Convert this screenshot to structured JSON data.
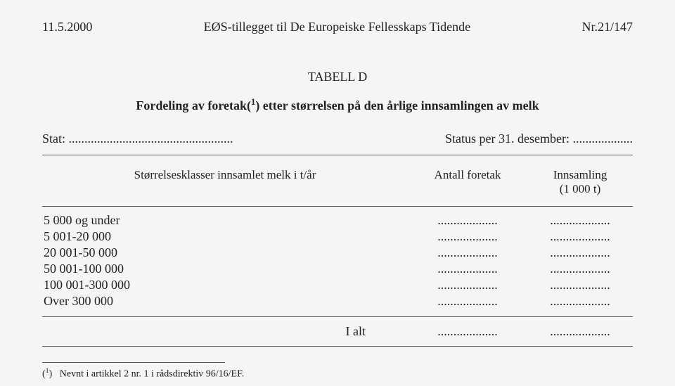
{
  "header": {
    "left": "11.5.2000",
    "center": "EØS-tillegget til De Europeiske Fellesskaps Tidende",
    "right": "Nr.21/147"
  },
  "title": "TABELL D",
  "subtitle_prefix": "Fordeling av foretak(",
  "subtitle_sup": "1",
  "subtitle_suffix": ") etter størrelsen på den årlige innsamlingen av melk",
  "stat_label": "Stat: ....................................................",
  "status_label": "Status per 31. desember: ...................",
  "columns": {
    "c1": "Størrelsesklasser innsamlet melk i t/år",
    "c2": "Antall foretak",
    "c3_line1": "Innsamling",
    "c3_line2": "(1 000 t)"
  },
  "rows": [
    {
      "label": "5 000 og under",
      "v1": "...................",
      "v2": "..................."
    },
    {
      "label": "5 001-20 000",
      "v1": "...................",
      "v2": "..................."
    },
    {
      "label": "20 001-50 000",
      "v1": "...................",
      "v2": "..................."
    },
    {
      "label": "50 001-100 000",
      "v1": "...................",
      "v2": "..................."
    },
    {
      "label": "100 001-300 000",
      "v1": "...................",
      "v2": "..................."
    },
    {
      "label": "Over 300 000",
      "v1": "...................",
      "v2": "..................."
    }
  ],
  "total": {
    "label": "I alt",
    "v1": "...................",
    "v2": "..................."
  },
  "footnote_marker": "1",
  "footnote_open": "(",
  "footnote_close": ")",
  "footnote_text": "Nevnt i artikkel 2 nr. 1 i rådsdirektiv 96/16/EF."
}
